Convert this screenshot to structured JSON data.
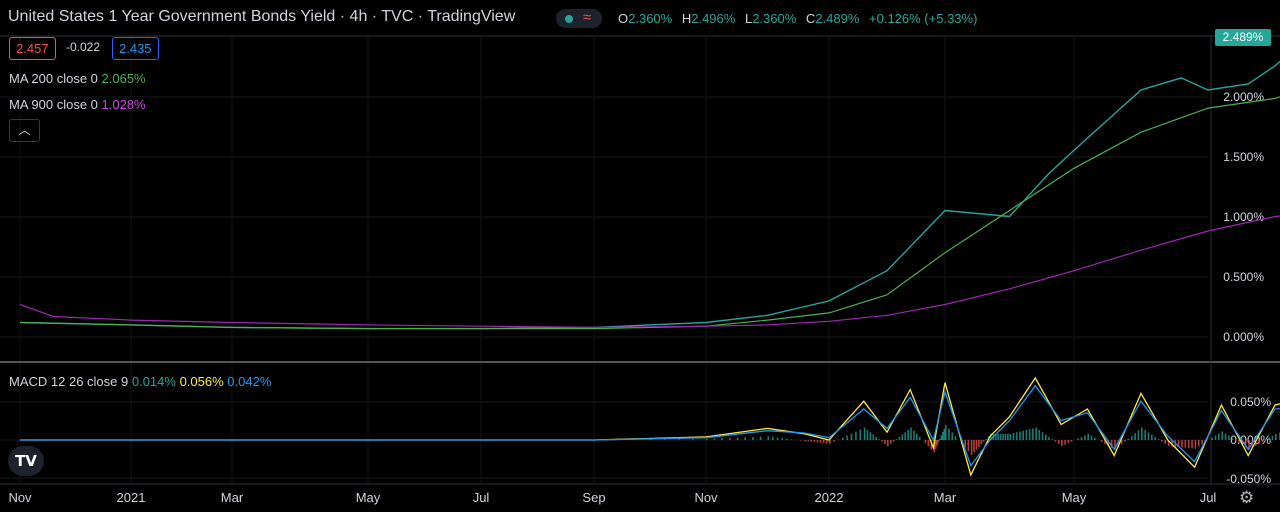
{
  "header": {
    "title": "United States 1 Year Government Bonds Yield · 4h · TVC · TradingView",
    "ohlc": {
      "o_label": "O",
      "o": "2.360%",
      "h_label": "H",
      "h": "2.496%",
      "l_label": "L",
      "l": "2.360%",
      "c_label": "C",
      "c": "2.489%",
      "change": "+0.126% (+5.33%)"
    },
    "status_icon": "wave-icon"
  },
  "quote": {
    "bid": "2.457",
    "spread": "-0.022",
    "ask": "2.435"
  },
  "indicators": {
    "ma200": {
      "label": "MA 200 close 0",
      "value": "2.065%",
      "color": "#4caf50"
    },
    "ma900": {
      "label": "MA 900 close 0",
      "value": "1.028%",
      "color": "#9c27b0"
    },
    "collapse_icon": "chevron-up-icon"
  },
  "price_tag": "2.489%",
  "macd": {
    "label": "MACD 12 26 close 9",
    "hist": "0.014%",
    "macd": "0.056%",
    "signal": "0.042%",
    "colors": {
      "hist_up": "#26a69a",
      "hist_down": "#ef5350",
      "macd": "#ffeb3b",
      "signal": "#2196f3"
    }
  },
  "footer": {
    "logo": "TV",
    "settings_icon": "gear-icon"
  },
  "chart_data": [
    {
      "type": "line",
      "x_ticks": [
        "Nov",
        "2021",
        "Mar",
        "May",
        "Jul",
        "Sep",
        "Nov",
        "2022",
        "Mar",
        "May",
        "Jul"
      ],
      "y_ticks": [
        "2.000%",
        "1.500%",
        "1.000%",
        "0.500%",
        "0.000%"
      ],
      "ylim": [
        -0.1,
        2.5
      ],
      "series": [
        {
          "name": "",
          "color": "#26a69a",
          "x": [
            0,
            1,
            2,
            3,
            4,
            5,
            6,
            6.5,
            7,
            7.5,
            8,
            8.5,
            8.8,
            9,
            9.2,
            9.5,
            9.8,
            10.0,
            10.3,
            10.5,
            10.75
          ],
          "y": [
            0.12,
            0.1,
            0.08,
            0.07,
            0.07,
            0.08,
            0.12,
            0.18,
            0.3,
            0.55,
            1.05,
            1.0,
            1.35,
            1.55,
            1.75,
            2.05,
            2.15,
            2.05,
            2.1,
            2.25,
            2.489
          ]
        },
        {
          "name": "MA 200 close 0",
          "color": "#4caf50",
          "x": [
            0,
            1,
            2,
            3,
            4,
            5,
            6,
            6.5,
            7,
            7.5,
            8,
            8.5,
            9,
            9.5,
            10,
            10.5,
            10.75
          ],
          "y": [
            0.12,
            0.1,
            0.08,
            0.07,
            0.07,
            0.07,
            0.09,
            0.14,
            0.2,
            0.35,
            0.7,
            1.05,
            1.4,
            1.7,
            1.9,
            1.98,
            2.065
          ]
        },
        {
          "name": "MA 900 close 0",
          "color": "#9c27b0",
          "x": [
            0,
            0.3,
            1,
            2,
            3,
            4,
            5,
            6,
            6.5,
            7,
            7.5,
            8,
            8.5,
            9,
            9.5,
            10,
            10.5,
            10.75
          ],
          "y": [
            0.27,
            0.17,
            0.14,
            0.12,
            0.1,
            0.09,
            0.08,
            0.09,
            0.1,
            0.13,
            0.18,
            0.27,
            0.4,
            0.55,
            0.72,
            0.88,
            1.0,
            1.028
          ]
        }
      ]
    },
    {
      "type": "line",
      "x_ticks": [
        "Nov",
        "2021",
        "Mar",
        "May",
        "Jul",
        "Sep",
        "Nov",
        "2022",
        "Mar",
        "May",
        "Jul"
      ],
      "y_ticks": [
        "0.050%",
        "0.000%",
        "-0.050%"
      ],
      "ylim": [
        -0.06,
        0.085
      ],
      "series": [
        {
          "name": "MACD",
          "color": "#ffeb3b",
          "x": [
            0,
            5,
            6,
            6.5,
            6.8,
            7.0,
            7.3,
            7.5,
            7.7,
            7.9,
            8.0,
            8.2,
            8.35,
            8.5,
            8.7,
            8.9,
            9.1,
            9.3,
            9.5,
            9.7,
            9.9,
            10.1,
            10.3,
            10.5,
            10.75
          ],
          "y": [
            0.0,
            0.0,
            0.004,
            0.015,
            0.008,
            0.0,
            0.05,
            0.01,
            0.065,
            -0.01,
            0.074,
            -0.045,
            0.005,
            0.03,
            0.08,
            0.02,
            0.04,
            -0.02,
            0.06,
            0.0,
            -0.035,
            0.045,
            -0.02,
            0.045,
            0.056
          ]
        },
        {
          "name": "Signal",
          "color": "#2196f3",
          "x": [
            0,
            5,
            6,
            6.5,
            6.8,
            7.0,
            7.3,
            7.5,
            7.7,
            7.9,
            8.0,
            8.2,
            8.35,
            8.5,
            8.7,
            8.9,
            9.1,
            9.3,
            9.5,
            9.7,
            9.9,
            10.1,
            10.3,
            10.5,
            10.75
          ],
          "y": [
            0.0,
            0.0,
            0.003,
            0.012,
            0.009,
            0.003,
            0.04,
            0.015,
            0.055,
            0.0,
            0.062,
            -0.033,
            0.0,
            0.025,
            0.07,
            0.025,
            0.035,
            -0.012,
            0.05,
            0.005,
            -0.028,
            0.038,
            -0.012,
            0.04,
            0.042
          ]
        }
      ]
    }
  ]
}
